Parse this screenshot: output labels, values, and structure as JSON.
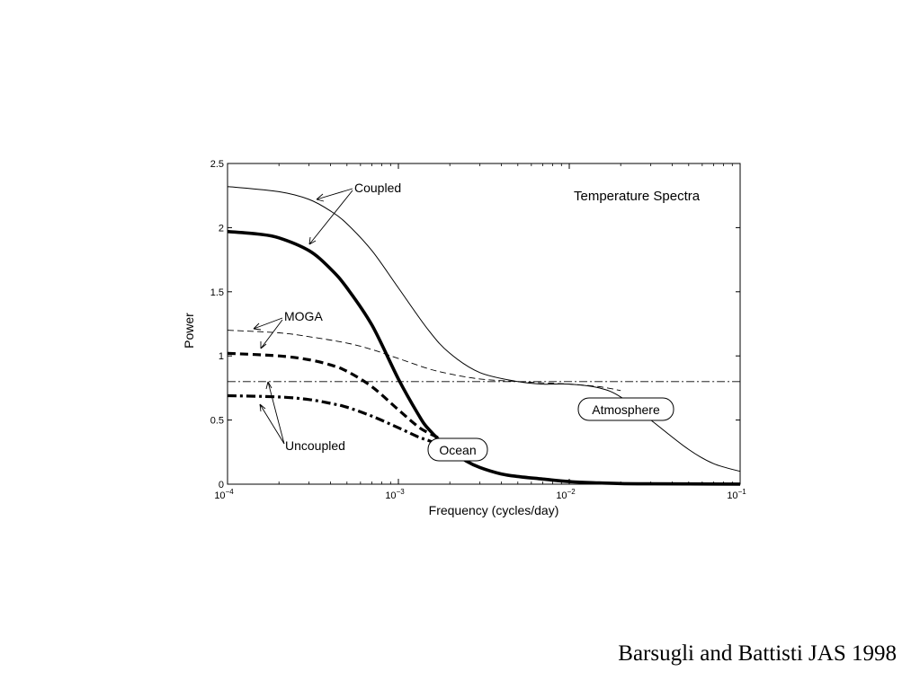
{
  "citation": "Barsugli and Battisti JAS 1998",
  "chart_data": {
    "type": "line",
    "title": "Temperature Spectra",
    "xlabel": "Frequency (cycles/day)",
    "ylabel": "Power",
    "xscale": "log",
    "xlim": [
      0.0001,
      0.1
    ],
    "ylim": [
      0,
      2.5
    ],
    "xticks": [
      {
        "value": 0.0001,
        "base": "10",
        "exp": "−4"
      },
      {
        "value": 0.001,
        "base": "10",
        "exp": "−3"
      },
      {
        "value": 0.01,
        "base": "10",
        "exp": "−2"
      },
      {
        "value": 0.1,
        "base": "10",
        "exp": "−1"
      }
    ],
    "yticks": [
      {
        "value": 0,
        "label": "0"
      },
      {
        "value": 0.5,
        "label": "0.5"
      },
      {
        "value": 1,
        "label": "1"
      },
      {
        "value": 1.5,
        "label": "1.5"
      },
      {
        "value": 2,
        "label": "2"
      },
      {
        "value": 2.5,
        "label": "2.5"
      }
    ],
    "series": [
      {
        "group": "Coupled",
        "style": "thin-solid",
        "x": [
          0.0001,
          0.0002,
          0.0003,
          0.0004,
          0.0005,
          0.0007,
          0.001,
          0.0015,
          0.002,
          0.003,
          0.005,
          0.007,
          0.01,
          0.015,
          0.02,
          0.03,
          0.05,
          0.07,
          0.1
        ],
        "y": [
          2.32,
          2.28,
          2.22,
          2.13,
          2.03,
          1.82,
          1.53,
          1.2,
          1.02,
          0.87,
          0.8,
          0.78,
          0.78,
          0.75,
          0.68,
          0.5,
          0.27,
          0.16,
          0.1
        ]
      },
      {
        "group": "Coupled",
        "style": "thick-solid",
        "x": [
          0.0001,
          0.00015,
          0.0002,
          0.0003,
          0.0004,
          0.0005,
          0.0007,
          0.001,
          0.0013,
          0.0015,
          0.002,
          0.0025,
          0.003,
          0.004,
          0.005,
          0.007,
          0.01,
          0.015,
          0.02,
          0.03,
          0.05,
          0.1
        ],
        "y": [
          1.97,
          1.95,
          1.92,
          1.82,
          1.68,
          1.53,
          1.24,
          0.82,
          0.55,
          0.43,
          0.27,
          0.18,
          0.13,
          0.08,
          0.06,
          0.04,
          0.02,
          0.01,
          0.005,
          0.003,
          0.002,
          0.001
        ]
      },
      {
        "group": "MOGA",
        "style": "thin-dashed",
        "x": [
          0.0001,
          0.0002,
          0.0003,
          0.0005,
          0.0007,
          0.001,
          0.0015,
          0.002,
          0.003,
          0.005,
          0.007,
          0.01,
          0.015,
          0.02
        ],
        "y": [
          1.2,
          1.18,
          1.15,
          1.1,
          1.05,
          0.98,
          0.9,
          0.86,
          0.82,
          0.8,
          0.79,
          0.78,
          0.76,
          0.73
        ]
      },
      {
        "group": "MOGA",
        "style": "thick-dashed",
        "x": [
          0.0001,
          0.0002,
          0.0003,
          0.0004,
          0.0005,
          0.0007,
          0.001,
          0.0013,
          0.0015,
          0.002
        ],
        "y": [
          1.02,
          1.0,
          0.97,
          0.93,
          0.88,
          0.76,
          0.58,
          0.45,
          0.4,
          0.32
        ]
      },
      {
        "group": "Uncoupled",
        "style": "thin-dashdot",
        "x": [
          0.0001,
          0.1
        ],
        "y": [
          0.8,
          0.8
        ]
      },
      {
        "group": "Uncoupled",
        "style": "thick-dashdot",
        "x": [
          0.0001,
          0.0002,
          0.0003,
          0.0004,
          0.0005,
          0.0007,
          0.001,
          0.0013,
          0.0015,
          0.0018
        ],
        "y": [
          0.69,
          0.68,
          0.66,
          0.63,
          0.6,
          0.53,
          0.44,
          0.37,
          0.34,
          0.3
        ]
      }
    ],
    "annotations": {
      "coupled": "Coupled",
      "moga": "MOGA",
      "uncoupled": "Uncoupled",
      "atmosphere": "Atmosphere",
      "ocean": "Ocean"
    },
    "grid": false,
    "legend": "none"
  }
}
